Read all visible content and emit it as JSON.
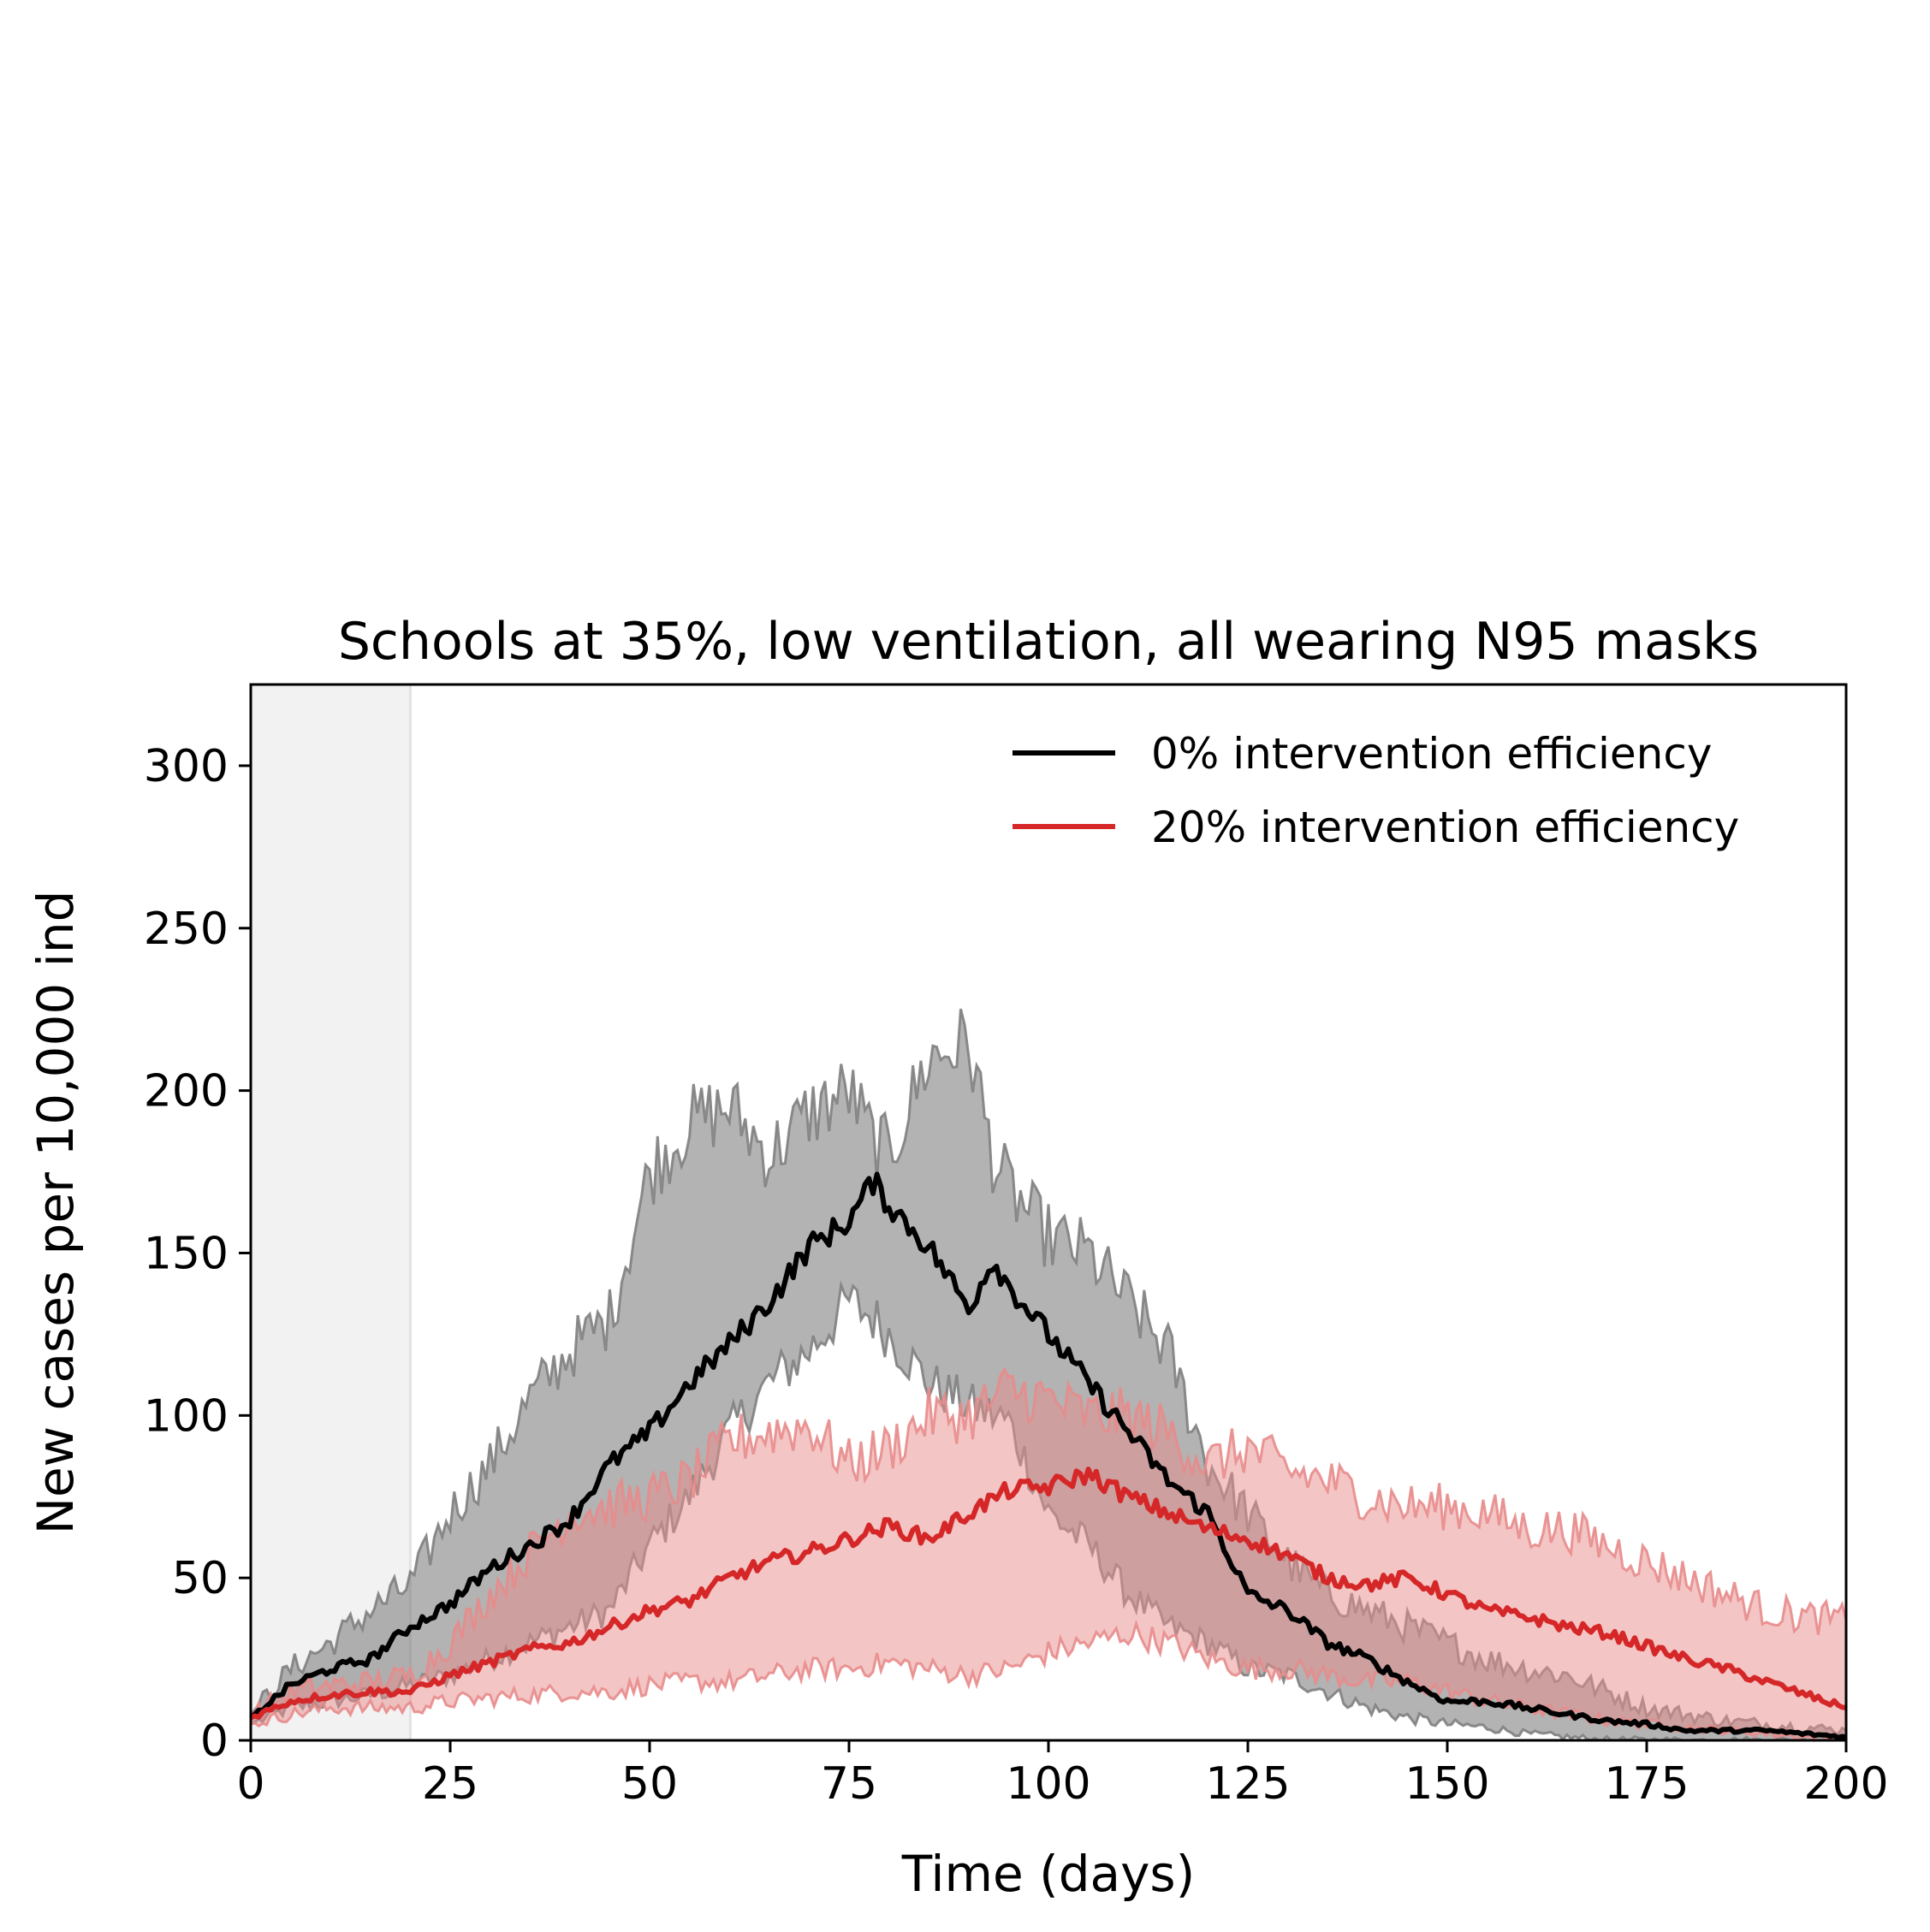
{
  "chart_data": {
    "type": "line",
    "title": "Schools at 35%, low ventilation, all wearing N95 masks",
    "xlabel": "Time (days)",
    "ylabel": "New cases per 10,000 ind",
    "xlim": [
      0,
      200
    ],
    "ylim": [
      0,
      325
    ],
    "xticks": [
      0,
      25,
      50,
      75,
      100,
      125,
      150,
      175,
      200
    ],
    "yticks": [
      0,
      50,
      100,
      150,
      200,
      250,
      300
    ],
    "grid": false,
    "legend_position": "top-right",
    "shaded_region": {
      "x_start": 0,
      "x_end": 20,
      "color": "#f2f2f2"
    },
    "series": [
      {
        "name": "0% intervention efficiency",
        "color": "#000000",
        "band_color": "#808080",
        "x": [
          0,
          5,
          10,
          15,
          20,
          25,
          30,
          35,
          40,
          45,
          50,
          55,
          60,
          65,
          70,
          75,
          78,
          80,
          85,
          90,
          93,
          95,
          100,
          105,
          110,
          115,
          120,
          125,
          130,
          135,
          140,
          145,
          150,
          155,
          160,
          165,
          170,
          175,
          180,
          185,
          190,
          195,
          200
        ],
        "y": [
          7,
          17,
          22,
          25,
          35,
          42,
          53,
          60,
          68,
          85,
          95,
          110,
          122,
          135,
          152,
          160,
          172,
          165,
          152,
          133,
          148,
          140,
          125,
          110,
          95,
          80,
          70,
          45,
          40,
          30,
          25,
          18,
          12,
          12,
          10,
          8,
          6,
          5,
          3,
          3,
          3,
          2,
          1
        ],
        "lower": [
          5,
          10,
          12,
          14,
          17,
          20,
          25,
          30,
          35,
          40,
          60,
          75,
          95,
          110,
          120,
          135,
          130,
          125,
          110,
          103,
          100,
          98,
          70,
          60,
          45,
          35,
          30,
          22,
          20,
          15,
          10,
          7,
          5,
          4,
          2,
          1,
          0,
          0,
          0,
          0,
          0,
          0,
          0
        ],
        "upper": [
          8,
          22,
          30,
          40,
          48,
          70,
          85,
          105,
          120,
          130,
          175,
          190,
          195,
          180,
          193,
          200,
          185,
          180,
          210,
          215,
          180,
          170,
          155,
          150,
          135,
          120,
          85,
          70,
          55,
          45,
          40,
          35,
          30,
          25,
          22,
          20,
          15,
          10,
          8,
          6,
          5,
          4,
          3
        ]
      },
      {
        "name": "20% intervention efficiency",
        "color": "#d62728",
        "band_color": "#e88b8b",
        "x": [
          0,
          5,
          10,
          15,
          20,
          25,
          30,
          35,
          40,
          45,
          50,
          55,
          60,
          65,
          70,
          75,
          80,
          85,
          90,
          95,
          100,
          105,
          110,
          115,
          120,
          125,
          130,
          135,
          140,
          145,
          150,
          155,
          160,
          165,
          170,
          175,
          180,
          185,
          190,
          195,
          200
        ],
        "y": [
          7,
          12,
          14,
          15,
          15,
          20,
          24,
          28,
          30,
          35,
          40,
          43,
          50,
          55,
          58,
          62,
          66,
          62,
          70,
          77,
          78,
          82,
          75,
          70,
          65,
          62,
          57,
          50,
          48,
          50,
          45,
          40,
          38,
          35,
          33,
          29,
          25,
          22,
          18,
          14,
          10
        ],
        "lower": [
          5,
          8,
          10,
          10,
          10,
          12,
          13,
          14,
          15,
          15,
          17,
          18,
          18,
          20,
          22,
          22,
          24,
          22,
          20,
          22,
          27,
          30,
          33,
          30,
          25,
          22,
          22,
          20,
          18,
          18,
          15,
          12,
          10,
          8,
          6,
          5,
          4,
          3,
          2,
          1,
          0
        ],
        "upper": [
          8,
          15,
          17,
          18,
          20,
          30,
          45,
          58,
          70,
          72,
          75,
          80,
          92,
          95,
          97,
          85,
          90,
          100,
          100,
          108,
          105,
          100,
          100,
          95,
          85,
          90,
          83,
          80,
          75,
          72,
          72,
          70,
          65,
          65,
          60,
          55,
          50,
          45,
          40,
          38,
          37
        ]
      }
    ]
  }
}
